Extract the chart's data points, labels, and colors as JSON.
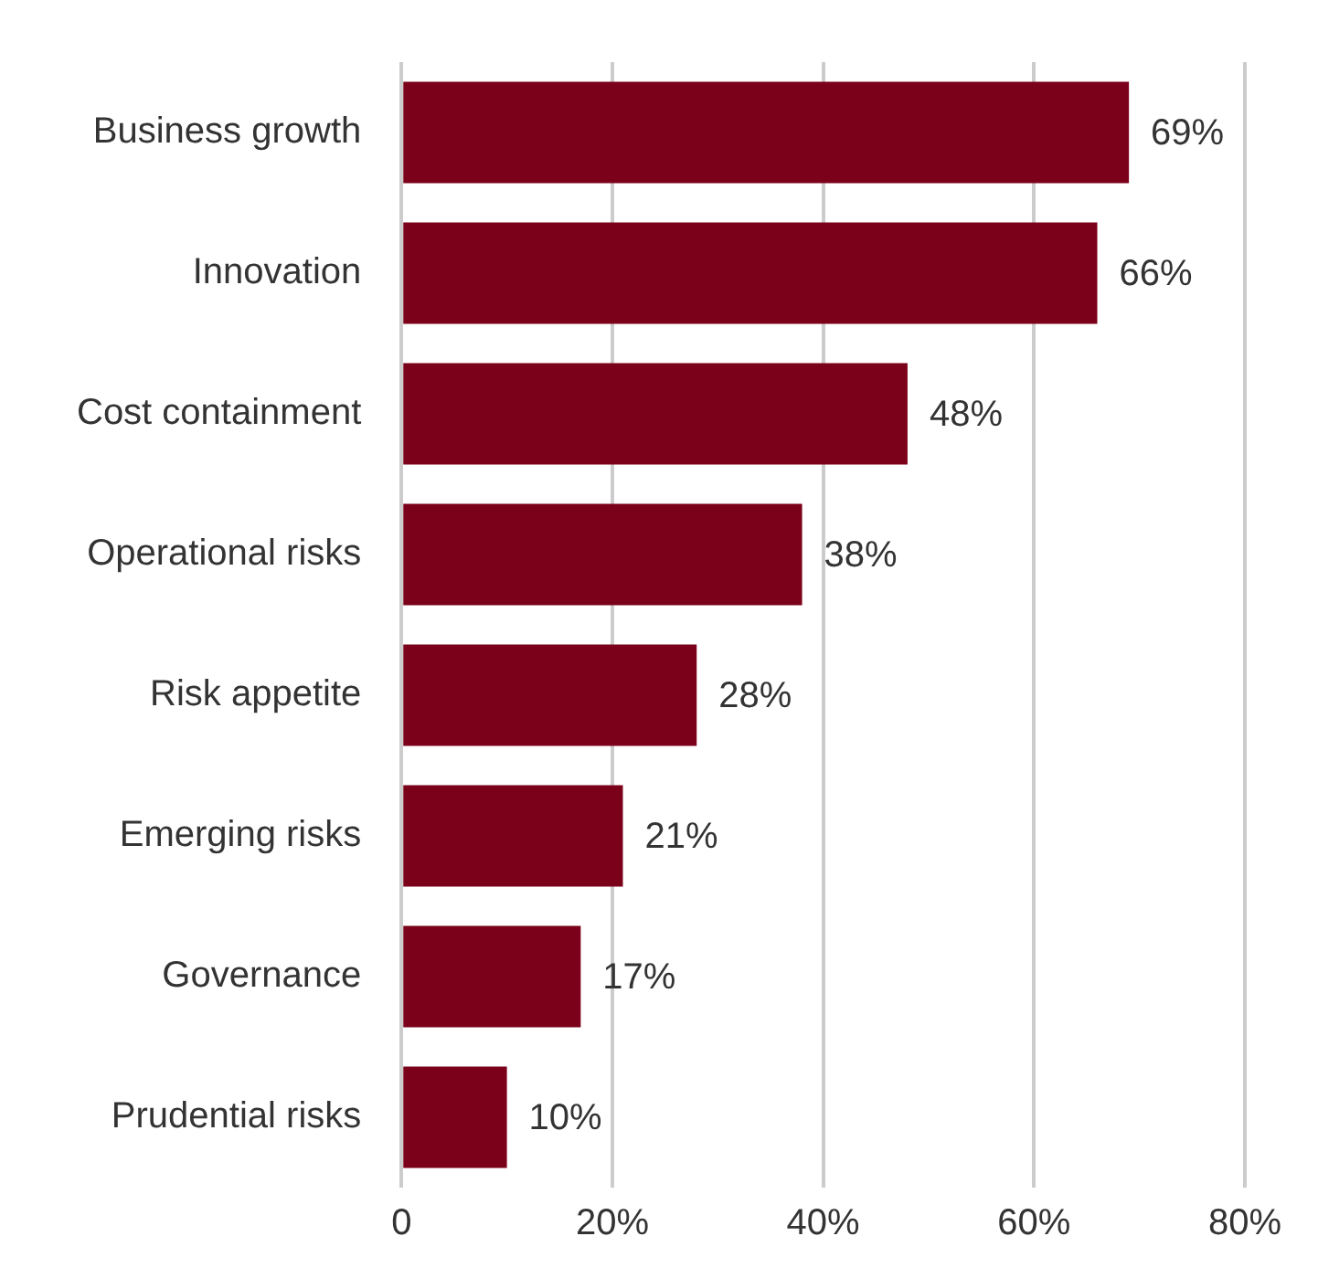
{
  "chart_data": {
    "type": "bar",
    "orientation": "horizontal",
    "categories": [
      "Business growth",
      "Innovation",
      "Cost containment",
      "Operational risks",
      "Risk appetite",
      "Emerging risks",
      "Governance",
      "Prudential risks"
    ],
    "values": [
      69,
      66,
      48,
      38,
      28,
      21,
      17,
      10
    ],
    "value_labels": [
      "69%",
      "66%",
      "48%",
      "38%",
      "28%",
      "21%",
      "17%",
      "10%"
    ],
    "color": "#7b0019",
    "xlim": [
      0,
      80
    ],
    "xticks": [
      0,
      {
        "value": 20,
        "label": "20%"
      },
      {
        "value": 40,
        "label": "40%"
      },
      {
        "value": 60,
        "label": "60%"
      },
      {
        "value": 80,
        "label": "80%"
      }
    ],
    "grid": "x",
    "legend": false
  }
}
